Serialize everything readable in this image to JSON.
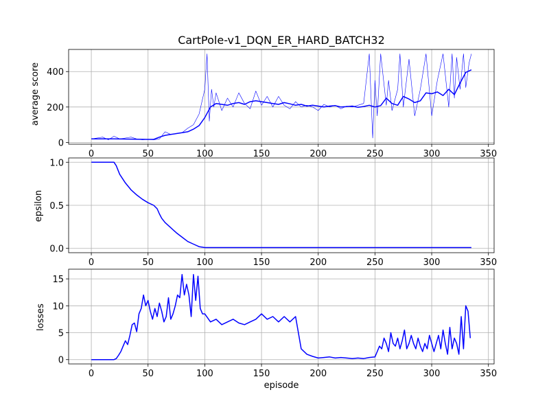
{
  "colors": {
    "series": "#0000ff",
    "grid": "#b0b0b0",
    "axis": "#000000"
  },
  "chart_data": [
    {
      "type": "line",
      "title": "CartPole-v1_DQN_ER_HARD_BATCH32",
      "xlabel": "",
      "ylabel": "average score",
      "xlim": [
        -20,
        355
      ],
      "ylim": [
        -10,
        525
      ],
      "xticks": [
        0,
        50,
        100,
        150,
        200,
        250,
        300,
        350
      ],
      "yticks": [
        0,
        200,
        400
      ],
      "grid": true,
      "series": [
        {
          "role": "raw-score",
          "x": [
            0,
            5,
            10,
            15,
            20,
            25,
            30,
            35,
            40,
            45,
            50,
            55,
            60,
            65,
            70,
            75,
            80,
            85,
            90,
            95,
            100,
            102,
            104,
            106,
            108,
            110,
            115,
            120,
            125,
            130,
            135,
            140,
            145,
            150,
            155,
            160,
            165,
            170,
            175,
            180,
            185,
            190,
            195,
            200,
            205,
            210,
            215,
            220,
            225,
            230,
            235,
            240,
            245,
            248,
            250,
            252,
            255,
            260,
            262,
            265,
            270,
            272,
            275,
            280,
            285,
            290,
            295,
            300,
            305,
            310,
            315,
            318,
            320,
            322,
            325,
            328,
            330,
            333,
            335
          ],
          "y": [
            20,
            25,
            30,
            15,
            35,
            20,
            25,
            30,
            20,
            15,
            18,
            15,
            20,
            60,
            45,
            50,
            55,
            80,
            100,
            160,
            300,
            500,
            120,
            300,
            200,
            280,
            180,
            250,
            200,
            280,
            220,
            190,
            290,
            210,
            260,
            200,
            260,
            210,
            190,
            230,
            200,
            210,
            200,
            180,
            215,
            200,
            210,
            190,
            205,
            200,
            210,
            220,
            500,
            25,
            350,
            150,
            500,
            210,
            350,
            180,
            300,
            500,
            200,
            470,
            150,
            300,
            500,
            150,
            350,
            500,
            200,
            500,
            250,
            480,
            300,
            500,
            310,
            450,
            500
          ]
        },
        {
          "role": "moving-average",
          "x": [
            0,
            10,
            20,
            30,
            40,
            50,
            55,
            60,
            65,
            70,
            75,
            80,
            85,
            90,
            95,
            100,
            105,
            110,
            115,
            120,
            125,
            130,
            135,
            140,
            145,
            150,
            155,
            160,
            165,
            170,
            175,
            180,
            185,
            190,
            195,
            200,
            205,
            210,
            215,
            220,
            225,
            230,
            235,
            240,
            245,
            250,
            255,
            260,
            265,
            270,
            275,
            280,
            285,
            290,
            295,
            300,
            305,
            310,
            315,
            320,
            325,
            330,
            335
          ],
          "y": [
            20,
            20,
            20,
            19,
            18,
            17,
            17,
            30,
            40,
            45,
            50,
            55,
            60,
            75,
            95,
            140,
            200,
            220,
            215,
            210,
            220,
            225,
            215,
            230,
            235,
            230,
            225,
            220,
            215,
            225,
            218,
            210,
            215,
            205,
            210,
            205,
            200,
            205,
            208,
            200,
            202,
            205,
            198,
            203,
            210,
            200,
            208,
            250,
            220,
            210,
            260,
            245,
            225,
            235,
            280,
            275,
            285,
            265,
            300,
            270,
            335,
            395,
            410
          ]
        }
      ]
    },
    {
      "type": "line",
      "title": "",
      "xlabel": "",
      "ylabel": "epsilon",
      "xlim": [
        -20,
        355
      ],
      "ylim": [
        -0.05,
        1.05
      ],
      "xticks": [
        0,
        50,
        100,
        150,
        200,
        250,
        300,
        350
      ],
      "yticks": [
        "0.0",
        "0.5",
        "1.0"
      ],
      "grid": true,
      "series": [
        {
          "x": [
            0,
            10,
            20,
            22,
            25,
            30,
            35,
            40,
            45,
            50,
            55,
            58,
            60,
            62,
            65,
            70,
            75,
            80,
            85,
            90,
            95,
            100,
            110,
            150,
            200,
            250,
            300,
            335
          ],
          "y": [
            1.0,
            1.0,
            1.0,
            0.96,
            0.86,
            0.76,
            0.68,
            0.62,
            0.57,
            0.53,
            0.5,
            0.46,
            0.4,
            0.35,
            0.3,
            0.24,
            0.18,
            0.13,
            0.08,
            0.05,
            0.02,
            0.01,
            0.01,
            0.01,
            0.01,
            0.01,
            0.01,
            0.01
          ]
        }
      ]
    },
    {
      "type": "line",
      "title": "",
      "xlabel": "episode",
      "ylabel": "losses",
      "xlim": [
        -20,
        355
      ],
      "ylim": [
        -0.8,
        16.8
      ],
      "xticks": [
        0,
        50,
        100,
        150,
        200,
        250,
        300,
        350
      ],
      "yticks": [
        0,
        5,
        10,
        15
      ],
      "grid": true,
      "series": [
        {
          "x": [
            0,
            5,
            10,
            15,
            20,
            22,
            24,
            26,
            28,
            30,
            32,
            34,
            36,
            38,
            40,
            42,
            44,
            46,
            48,
            50,
            52,
            54,
            56,
            58,
            60,
            62,
            64,
            66,
            68,
            70,
            72,
            74,
            76,
            78,
            80,
            82,
            84,
            86,
            88,
            90,
            92,
            94,
            96,
            98,
            100,
            105,
            110,
            115,
            120,
            125,
            130,
            135,
            140,
            145,
            150,
            155,
            160,
            165,
            170,
            175,
            180,
            185,
            190,
            195,
            200,
            205,
            210,
            215,
            220,
            225,
            230,
            235,
            240,
            245,
            250,
            252,
            254,
            256,
            258,
            260,
            262,
            264,
            266,
            268,
            270,
            272,
            274,
            276,
            278,
            280,
            282,
            284,
            286,
            288,
            290,
            292,
            294,
            296,
            298,
            300,
            302,
            304,
            306,
            308,
            310,
            312,
            314,
            316,
            318,
            320,
            322,
            324,
            326,
            328,
            330,
            332,
            334
          ],
          "y": [
            0,
            0,
            0,
            0,
            0,
            0.2,
            0.8,
            1.5,
            2.5,
            3.5,
            2.8,
            4.5,
            6.5,
            6.8,
            5.2,
            8.5,
            9.5,
            12,
            10,
            11,
            9,
            7.5,
            9.5,
            8,
            10.5,
            9,
            7,
            8,
            11.5,
            7.5,
            8.5,
            10,
            12,
            11.5,
            15.8,
            12,
            14,
            12,
            8,
            15.8,
            11,
            15.5,
            9.5,
            8.5,
            8.5,
            7,
            7.5,
            6.5,
            7,
            7.5,
            6.8,
            6.5,
            7,
            7.5,
            8.5,
            7.5,
            8,
            7,
            8,
            7,
            8,
            2,
            1,
            0.6,
            0.3,
            0.4,
            0.5,
            0.3,
            0.4,
            0.3,
            0.2,
            0.3,
            0.2,
            0.4,
            0.5,
            1.5,
            2.5,
            2,
            4,
            3,
            1.5,
            5,
            3,
            2.5,
            4,
            2,
            3.5,
            5.5,
            2,
            3,
            4.5,
            3,
            2,
            4,
            2.5,
            1.5,
            3,
            2,
            4.5,
            3,
            1.5,
            3,
            4.5,
            2,
            5.5,
            3,
            1,
            6,
            2,
            4,
            3,
            1,
            8,
            2,
            10,
            9,
            4
          ]
        }
      ]
    }
  ]
}
